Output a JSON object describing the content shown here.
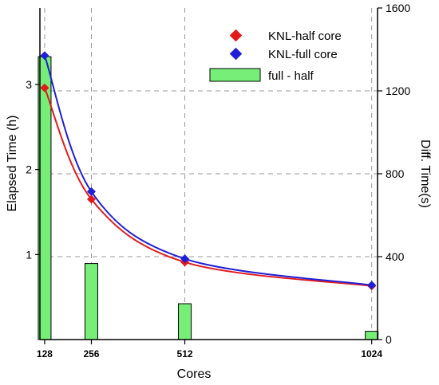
{
  "chart_data": {
    "type": "bar+line",
    "title": "",
    "xlabel": "Cores",
    "ylabel": "Elapsed Time (h)",
    "y2label": "Diff. Time(s)",
    "x": [
      128,
      256,
      512,
      1024
    ],
    "x_tick_labels": [
      "128",
      "256",
      "512",
      "1024"
    ],
    "xlim": [
      115,
      1040
    ],
    "ylim": [
      0,
      3.9
    ],
    "y_ticks": [
      1,
      2,
      3
    ],
    "y_tick_labels": [
      "1",
      "2",
      "3"
    ],
    "y2lim": [
      0,
      1600
    ],
    "y2_ticks": [
      0,
      400,
      800,
      1200,
      1600
    ],
    "y2_tick_labels": [
      "0",
      "400",
      "800",
      "1200",
      "1600"
    ],
    "grid": true,
    "legend_position": "top-right",
    "series": [
      {
        "name": "KNL-half core",
        "kind": "line-marker",
        "axis": "left",
        "marker": "diamond",
        "color": "#e31a1c",
        "values": [
          2.96,
          1.65,
          0.91,
          0.63
        ]
      },
      {
        "name": "KNL-full core",
        "kind": "line-marker",
        "axis": "left",
        "marker": "diamond",
        "color": "#1f1fd8",
        "values": [
          3.34,
          1.74,
          0.95,
          0.64
        ]
      },
      {
        "name": "full - half",
        "kind": "bar",
        "axis": "right",
        "color": "#77ee77",
        "edge_color": "#000000",
        "values": [
          1365,
          367,
          173,
          40
        ]
      }
    ]
  }
}
